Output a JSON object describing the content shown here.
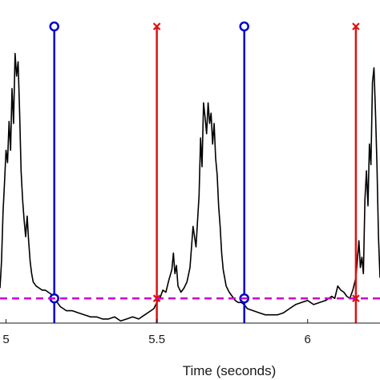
{
  "chart_data": {
    "type": "line",
    "xlabel": "Time (seconds)",
    "ylabel": "",
    "title": "",
    "xlim": [
      4.98,
      6.24
    ],
    "ylim": [
      -0.12,
      1.45
    ],
    "x_ticks": [
      5.0,
      5.5,
      6.0
    ],
    "x_tick_labels": [
      "5",
      "5.5",
      "6"
    ],
    "grid": false,
    "threshold": {
      "y": 0.0,
      "color": "#cc00cc",
      "style": "dashed"
    },
    "onset_markers": {
      "x": [
        5.16,
        5.79
      ],
      "marker": "circle",
      "color": "#0000cc"
    },
    "offset_markers": {
      "x": [
        5.5,
        6.16
      ],
      "marker": "x",
      "color": "#dd1111"
    },
    "series": [
      {
        "color": "#000000",
        "x": [
          4.98,
          4.985,
          4.99,
          4.995,
          5.0,
          5.005,
          5.01,
          5.015,
          5.02,
          5.025,
          5.03,
          5.035,
          5.04,
          5.045,
          5.05,
          5.055,
          5.06,
          5.065,
          5.07,
          5.075,
          5.08,
          5.085,
          5.09,
          5.1,
          5.11,
          5.12,
          5.13,
          5.14,
          5.15,
          5.16,
          5.17,
          5.18,
          5.19,
          5.2,
          5.22,
          5.24,
          5.26,
          5.28,
          5.3,
          5.32,
          5.34,
          5.36,
          5.38,
          5.4,
          5.42,
          5.44,
          5.46,
          5.48,
          5.49,
          5.5,
          5.51,
          5.52,
          5.53,
          5.54,
          5.55,
          5.555,
          5.56,
          5.565,
          5.57,
          5.58,
          5.59,
          5.6,
          5.61,
          5.62,
          5.63,
          5.64,
          5.645,
          5.65,
          5.655,
          5.66,
          5.665,
          5.67,
          5.675,
          5.68,
          5.685,
          5.69,
          5.695,
          5.7,
          5.705,
          5.71,
          5.715,
          5.72,
          5.73,
          5.74,
          5.75,
          5.76,
          5.77,
          5.78,
          5.79,
          5.8,
          5.82,
          5.84,
          5.86,
          5.88,
          5.9,
          5.92,
          5.94,
          5.96,
          5.98,
          6.0,
          6.02,
          6.04,
          6.06,
          6.08,
          6.09,
          6.1,
          6.11,
          6.12,
          6.13,
          6.14,
          6.15,
          6.16,
          6.17,
          6.175,
          6.18,
          6.185,
          6.19,
          6.195,
          6.2,
          6.205,
          6.21,
          6.215,
          6.22,
          6.225,
          6.23,
          6.235,
          6.24
        ],
        "y": [
          0.05,
          0.18,
          0.42,
          0.56,
          0.72,
          0.66,
          0.86,
          0.72,
          1.02,
          0.85,
          1.19,
          1.08,
          1.15,
          0.9,
          0.62,
          0.48,
          0.38,
          0.3,
          0.4,
          0.28,
          0.18,
          0.12,
          0.08,
          0.06,
          0.05,
          0.04,
          0.04,
          0.03,
          0.02,
          0.01,
          -0.02,
          -0.04,
          -0.05,
          -0.06,
          -0.06,
          -0.07,
          -0.08,
          -0.09,
          -0.09,
          -0.1,
          -0.1,
          -0.09,
          -0.11,
          -0.1,
          -0.09,
          -0.1,
          -0.08,
          -0.06,
          -0.05,
          -0.02,
          0.0,
          0.04,
          0.03,
          0.09,
          0.14,
          0.22,
          0.12,
          0.16,
          0.06,
          0.03,
          0.05,
          0.08,
          0.15,
          0.35,
          0.25,
          0.5,
          0.78,
          0.64,
          0.95,
          0.88,
          0.8,
          0.95,
          0.85,
          0.9,
          0.75,
          0.85,
          0.68,
          0.6,
          0.45,
          0.35,
          0.22,
          0.14,
          0.06,
          0.03,
          0.01,
          -0.01,
          -0.02,
          -0.02,
          -0.03,
          -0.05,
          -0.06,
          -0.07,
          -0.08,
          -0.08,
          -0.08,
          -0.07,
          -0.05,
          -0.03,
          -0.02,
          -0.01,
          -0.03,
          -0.02,
          -0.01,
          0.01,
          0.0,
          0.06,
          0.04,
          0.03,
          0.01,
          0.0,
          0.04,
          0.1,
          0.28,
          0.15,
          0.2,
          0.12,
          0.48,
          0.62,
          0.45,
          0.75,
          0.65,
          1.05,
          1.12,
          0.9,
          0.65,
          0.3,
          0.1
        ]
      }
    ]
  }
}
